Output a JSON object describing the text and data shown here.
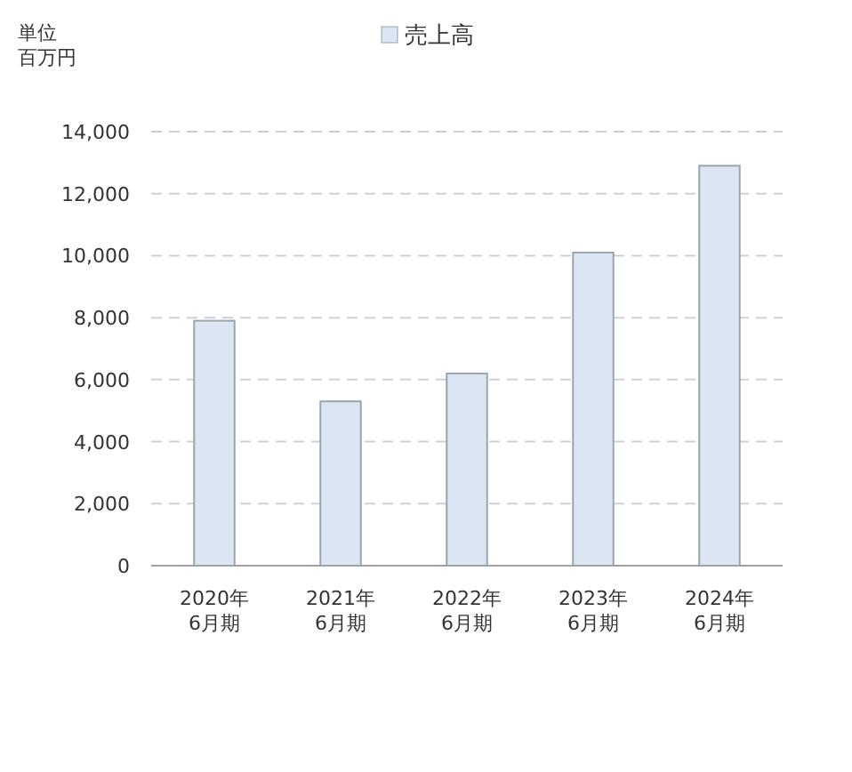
{
  "chart_data": {
    "type": "bar",
    "ylabel": "単位",
    "annotations": [
      "百万円"
    ],
    "categories": [
      "2020年\n6月期",
      "2021年\n6月期",
      "2022年\n6月期",
      "2023年\n6月期",
      "2024年\n6月期"
    ],
    "series": [
      {
        "name": "売上高",
        "color": "#dce6f2",
        "values": [
          7900,
          5300,
          6200,
          10100,
          12900
        ]
      }
    ],
    "ylim": [
      0,
      14000
    ],
    "yticks": [
      {
        "value": 0,
        "label": "0"
      },
      {
        "value": 2000,
        "label": "2,000"
      },
      {
        "value": 4000,
        "label": "4,000"
      },
      {
        "value": 6000,
        "label": "6,000"
      },
      {
        "value": 8000,
        "label": "8,000"
      },
      {
        "value": 10000,
        "label": "10,000"
      },
      {
        "value": 12000,
        "label": "12,000"
      },
      {
        "value": 14000,
        "label": "14,000"
      }
    ],
    "grid": "y",
    "legend": "top"
  }
}
